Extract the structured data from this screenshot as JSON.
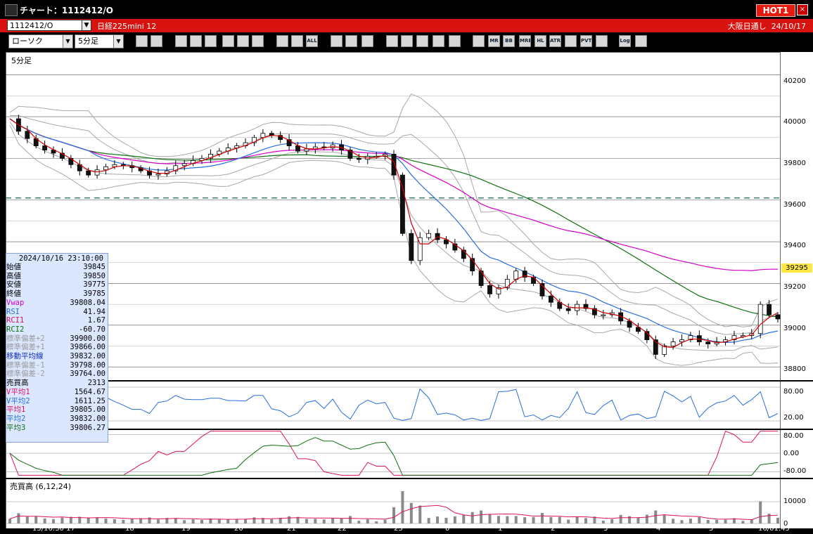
{
  "window": {
    "title": "チャート：1112412/O",
    "hot_label": "HOT1",
    "close_glyph": "×"
  },
  "symbol_bar": {
    "code": "1112412/O",
    "name": "日経225mini 12",
    "market": "大阪日通し",
    "date": "24/10/17"
  },
  "toolbar": {
    "chart_type": "ローソク",
    "interval": "5分足",
    "icons": [
      "zoom-icon",
      "cursor-line-icon",
      "pencil-icon",
      "draw-icon",
      "pointer-icon",
      "undo-icon",
      "clipboard-icon",
      "trash-icon",
      "candle-icon",
      "bar-icon",
      "all-icon",
      "settings-icon",
      "tool-icon",
      "palette-icon",
      "filter-icon",
      "search-chart-icon",
      "grid-icon",
      "cross-icon",
      "blank-icon",
      "ma-icon",
      "mr-icon",
      "bb-icon",
      "mre-icon",
      "hl-icon",
      "atr-icon",
      "rsi-icon",
      "pvt-icon",
      "box-icon",
      "log-icon",
      "export-icon"
    ],
    "icon_labels": {
      "all": "ALL",
      "mr": "MR",
      "bb": "BB",
      "mre": "MRE",
      "hl": "HL",
      "atr": "ATR",
      "pvt": "PVT",
      "log": "Log"
    }
  },
  "chart": {
    "frame_label": "5分足",
    "dashed_level": 39610,
    "last_price": "39295"
  },
  "price_axis": {
    "labels": [
      "40200",
      "40000",
      "39800",
      "39600",
      "39400",
      "39200",
      "39000",
      "38800"
    ]
  },
  "rsi_axis": {
    "labels": [
      "80.00",
      "20.00"
    ]
  },
  "rci_axis": {
    "labels": [
      "80.00",
      "0.00",
      "-80.00"
    ]
  },
  "vol_axis": {
    "labels": [
      "10000",
      "0"
    ]
  },
  "volume_pane": {
    "label": "売買高 (6,12,24)"
  },
  "date_labels": [
    "15/16:30 17",
    "18",
    "19",
    "20",
    "21",
    "22",
    "23",
    "0",
    "1",
    "2",
    "3",
    "4",
    "5",
    "16/01:45"
  ],
  "info_panel": {
    "datetime": "2024/10/16  23:10:00",
    "rows": [
      {
        "k": "始値",
        "v": "39845",
        "c": "#000"
      },
      {
        "k": "高値",
        "v": "39850",
        "c": "#000"
      },
      {
        "k": "安値",
        "v": "39775",
        "c": "#000"
      },
      {
        "k": "終値",
        "v": "39785",
        "c": "#000"
      },
      {
        "k": "Vwap",
        "v": "39808.04",
        "c": "#d400c8"
      },
      {
        "k": "RSI",
        "v": "41.94",
        "c": "#2a6ee0"
      },
      {
        "k": "RCI1",
        "v": "1.67",
        "c": "#e01060"
      },
      {
        "k": "RCI2",
        "v": "-60.70",
        "c": "#107010"
      },
      {
        "k": "標準偏差+2",
        "v": "39900.00",
        "c": "#9a9a9a"
      },
      {
        "k": "標準偏差+1",
        "v": "39866.00",
        "c": "#9a9a9a"
      },
      {
        "k": "移動平均線",
        "v": "39832.00",
        "c": "#1030c0"
      },
      {
        "k": "標準偏差-1",
        "v": "39798.00",
        "c": "#9a9a9a"
      },
      {
        "k": "標準偏差-2",
        "v": "39764.00",
        "c": "#9a9a9a"
      },
      {
        "k": "売買高",
        "v": "2313",
        "c": "#000"
      },
      {
        "k": "V平均1",
        "v": "1564.67",
        "c": "#e01060"
      },
      {
        "k": "V平均2",
        "v": "1611.25",
        "c": "#2a6ee0"
      },
      {
        "k": "平均1",
        "v": "39805.00",
        "c": "#e01060"
      },
      {
        "k": "平均2",
        "v": "39832.00",
        "c": "#2a6ee0"
      },
      {
        "k": "平均3",
        "v": "39806.27",
        "c": "#107010"
      }
    ]
  },
  "colors": {
    "up": "#ffffff",
    "down": "#111111",
    "ma_fast": "#cc0000",
    "ma_mid": "#2a6ee0",
    "ma_slow": "#107010",
    "vwap": "#d400c8",
    "band": "#a8a8a8",
    "rsi": "#2a6ee0",
    "rci1": "#e01060",
    "rci2": "#107010",
    "dashed": "#107050"
  },
  "chart_data": {
    "type": "candlestick",
    "price_ylim": [
      38740,
      40310
    ],
    "price_series": [
      39990,
      39930,
      39895,
      39860,
      39840,
      39825,
      39800,
      39770,
      39740,
      39720,
      39745,
      39760,
      39770,
      39765,
      39755,
      39740,
      39720,
      39725,
      39740,
      39765,
      39775,
      39790,
      39800,
      39820,
      39835,
      39850,
      39860,
      39875,
      39900,
      39920,
      39910,
      39890,
      39860,
      39835,
      39845,
      39855,
      39850,
      39865,
      39840,
      39800,
      39795,
      39810,
      39810,
      39820,
      39720,
      39440,
      39310,
      39420,
      39440,
      39410,
      39390,
      39360,
      39320,
      39260,
      39190,
      39150,
      39180,
      39220,
      39260,
      39230,
      39200,
      39140,
      39110,
      39080,
      39070,
      39100,
      39080,
      39050,
      39050,
      39060,
      39020,
      38990,
      38970,
      38930,
      38860,
      38900,
      38920,
      38930,
      38950,
      38920,
      38910,
      38920,
      38930,
      38950,
      38950,
      38960,
      39100,
      39050,
      39030
    ]
  }
}
